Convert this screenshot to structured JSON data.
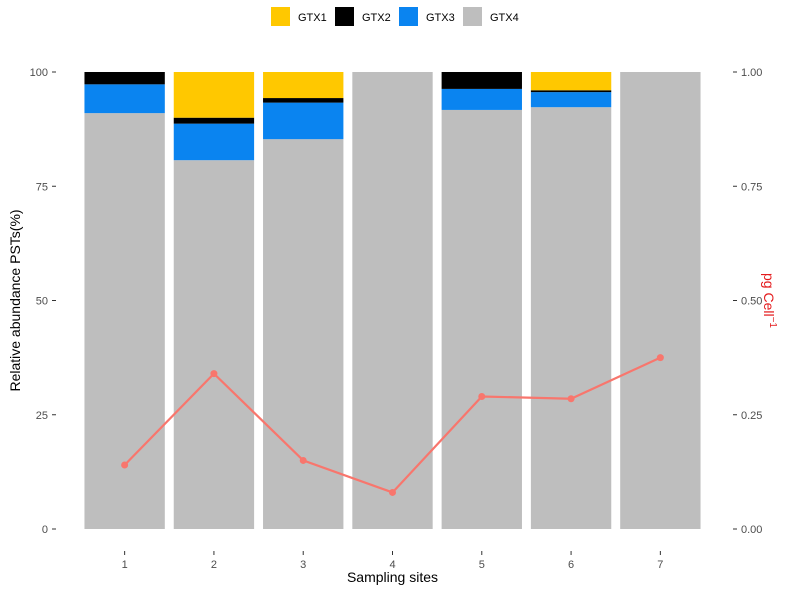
{
  "chart_data": {
    "type": "bar",
    "subtype": "stacked-bar-with-line-secondary-axis",
    "categories": [
      "1",
      "2",
      "3",
      "4",
      "5",
      "6",
      "7"
    ],
    "xlabel": "Sampling sites",
    "ylabel": "Relative abundance PSTs(%)",
    "ylabel_right": "pg Cell",
    "ylabel_right_sup": "−1",
    "ylim": [
      0,
      100
    ],
    "ylim_right": [
      0,
      1
    ],
    "yticks": [
      0,
      25,
      50,
      75,
      100
    ],
    "yticks_right": [
      0,
      0.25,
      0.5,
      0.75,
      1
    ],
    "ytick_labels": [
      "0",
      "25",
      "50",
      "75",
      "100"
    ],
    "ytick_labels_right": [
      "0.00",
      "0.25",
      "0.50",
      "0.75",
      "1.00"
    ],
    "grid": false,
    "legend_position": "top",
    "series": [
      {
        "name": "GTX4",
        "color": "#bebebe",
        "values": [
          91,
          80.7,
          85.3,
          100,
          91.7,
          92.3,
          100
        ]
      },
      {
        "name": "GTX3",
        "color": "#0a84f0",
        "values": [
          6.3,
          8.0,
          8.0,
          0,
          4.6,
          3.3,
          0
        ]
      },
      {
        "name": "GTX2",
        "color": "#000000",
        "values": [
          2.7,
          1.3,
          1.0,
          0,
          3.7,
          0.4,
          0
        ]
      },
      {
        "name": "GTX1",
        "color": "#ffc800",
        "values": [
          0,
          10.0,
          5.7,
          0,
          0,
          4.0,
          0
        ]
      }
    ],
    "legend_order": [
      "GTX1",
      "GTX2",
      "GTX3",
      "GTX4"
    ],
    "line_series": {
      "color": "#f8766d",
      "axis": "right",
      "values": [
        0.14,
        0.34,
        0.15,
        0.08,
        0.29,
        0.285,
        0.375
      ]
    }
  }
}
